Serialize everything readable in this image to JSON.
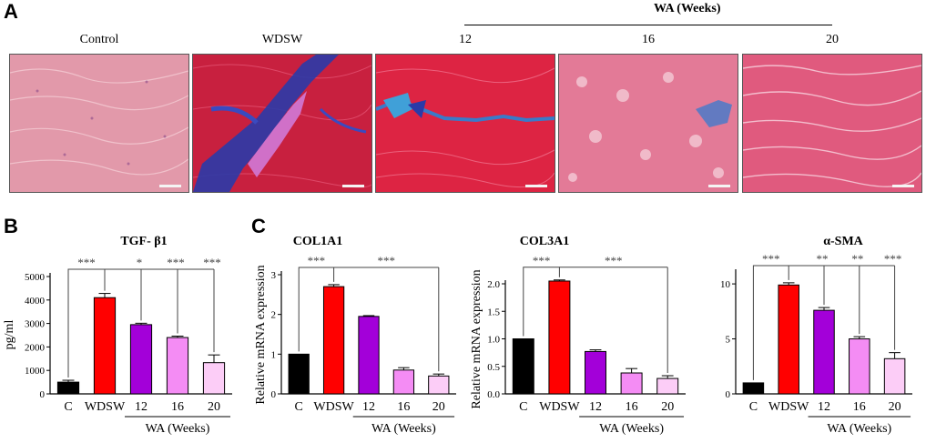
{
  "panel_a": {
    "letter": "A",
    "group_header": "WA (Weeks)",
    "images": [
      {
        "label": "Control",
        "stain": "control"
      },
      {
        "label": "WDSW",
        "stain": "fibrosis"
      },
      {
        "label": "12",
        "stain": "partial"
      },
      {
        "label": "16",
        "stain": "mild"
      },
      {
        "label": "20",
        "stain": "normal"
      }
    ]
  },
  "panel_b_letter": "B",
  "panel_c_letter": "C",
  "colors": {
    "C": "#000000",
    "WDSW": "#ff0000",
    "12": "#a300d9",
    "16": "#f48cf4",
    "20": "#fccdf7"
  },
  "chart_data": [
    {
      "type": "bar",
      "title": "TGF- β1",
      "categories": [
        "C",
        "WDSW",
        "12",
        "16",
        "20"
      ],
      "values": [
        500,
        4100,
        2950,
        2400,
        1330
      ],
      "errors": [
        80,
        180,
        60,
        60,
        330
      ],
      "ylabel": "pg/ml",
      "xgroup_label": "WA (Weeks)",
      "ylim": [
        0,
        5000
      ],
      "yticks": [
        0,
        1000,
        2000,
        3000,
        4000,
        5000
      ],
      "sig_pairs": [
        {
          "from": 0,
          "to": 1,
          "label": "***"
        },
        {
          "from": 1,
          "to": 2,
          "label": "*"
        },
        {
          "from": 1,
          "to": 3,
          "label": "***"
        },
        {
          "from": 1,
          "to": 4,
          "label": "***"
        }
      ]
    },
    {
      "type": "bar",
      "title": "COL1A1",
      "categories": [
        "C",
        "WDSW",
        "12",
        "16",
        "20"
      ],
      "values": [
        1.0,
        2.7,
        1.95,
        0.6,
        0.45
      ],
      "errors": [
        0.0,
        0.05,
        0.02,
        0.06,
        0.05
      ],
      "ylabel": "Relative mRNA expression",
      "xgroup_label": "WA (Weeks)",
      "ylim": [
        0,
        3
      ],
      "yticks": [
        0,
        1,
        2,
        3
      ],
      "sig_pairs": [
        {
          "from": 0,
          "to": 1,
          "label": "***"
        },
        {
          "from": 1,
          "to": 4,
          "label": "***"
        }
      ]
    },
    {
      "type": "bar",
      "title": "COL3A1",
      "categories": [
        "C",
        "WDSW",
        "12",
        "16",
        "20"
      ],
      "values": [
        1.0,
        2.05,
        0.77,
        0.38,
        0.28
      ],
      "errors": [
        0.0,
        0.02,
        0.03,
        0.08,
        0.05
      ],
      "ylabel": "Relative mRNA expression",
      "xgroup_label": "WA (Weeks)",
      "ylim": [
        0,
        2.0
      ],
      "yticks": [
        0.0,
        0.5,
        1.0,
        1.5,
        2.0
      ],
      "ytick_labels": [
        "0.0",
        "0.5",
        "1.0",
        "1.5",
        "2.0"
      ],
      "sig_pairs": [
        {
          "from": 0,
          "to": 1,
          "label": "***"
        },
        {
          "from": 1,
          "to": 4,
          "label": "***"
        }
      ]
    },
    {
      "type": "bar",
      "title": "α-SMA",
      "categories": [
        "C",
        "WDSW",
        "12",
        "16",
        "20"
      ],
      "values": [
        1.0,
        9.9,
        7.6,
        5.0,
        3.2
      ],
      "errors": [
        0.0,
        0.2,
        0.25,
        0.2,
        0.55
      ],
      "ylabel": "",
      "xgroup_label": "WA (Weeks)",
      "ylim": [
        0,
        11
      ],
      "yticks": [
        0,
        5,
        10
      ],
      "sig_pairs": [
        {
          "from": 0,
          "to": 1,
          "label": "***"
        },
        {
          "from": 1,
          "to": 2,
          "label": "**"
        },
        {
          "from": 1,
          "to": 3,
          "label": "**"
        },
        {
          "from": 1,
          "to": 4,
          "label": "***"
        }
      ]
    }
  ]
}
